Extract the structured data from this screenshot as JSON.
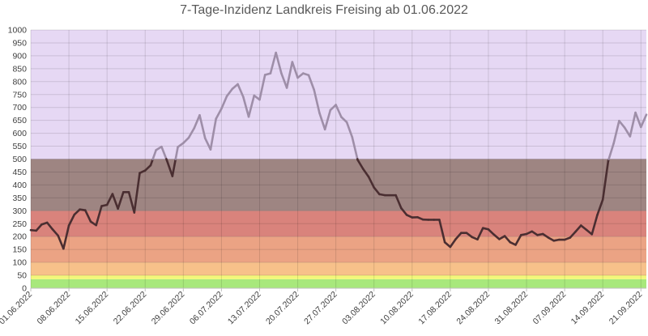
{
  "chart_data": {
    "type": "line",
    "title": "7-Tage-Inzidenz Landkreis Freising ab 01.06.2022",
    "xlabel": "",
    "ylabel": "",
    "ylim": [
      0,
      1000
    ],
    "yticks": [
      0,
      50,
      100,
      150,
      200,
      250,
      300,
      350,
      400,
      450,
      500,
      550,
      600,
      650,
      700,
      750,
      800,
      850,
      900,
      950,
      1000
    ],
    "x_tick_labels": [
      "01.06.2022",
      "08.06.2022",
      "15.06.2022",
      "22.06.2022",
      "29.06.2022",
      "06.07.2022",
      "13.07.2022",
      "20.07.2022",
      "27.07.2022",
      "03.08.2022",
      "10.08.2022",
      "17.08.2022",
      "24.08.2022",
      "31.08.2022",
      "07.09.2022",
      "14.09.2022",
      "21.09.2022"
    ],
    "grid": true,
    "bands": [
      {
        "from": 0,
        "to": 35,
        "color": "#a8e87c"
      },
      {
        "from": 35,
        "to": 50,
        "color": "#f3f77a"
      },
      {
        "from": 50,
        "to": 100,
        "color": "#f7c18a"
      },
      {
        "from": 100,
        "to": 200,
        "color": "#eba384"
      },
      {
        "from": 200,
        "to": 300,
        "color": "#d9837c"
      },
      {
        "from": 300,
        "to": 500,
        "color": "#9e8582"
      },
      {
        "from": 500,
        "to": 1000,
        "color": "#e6d8f4"
      }
    ],
    "series": [
      {
        "values": [
          225,
          223,
          247,
          254,
          228,
          204,
          153,
          243,
          285,
          305,
          302,
          258,
          244,
          318,
          323,
          365,
          308,
          372,
          372,
          293,
          446,
          456,
          476,
          535,
          548,
          494,
          434,
          547,
          562,
          583,
          620,
          670,
          581,
          537,
          656,
          695,
          744,
          772,
          790,
          741,
          664,
          746,
          730,
          826,
          832,
          912,
          832,
          776,
          876,
          815,
          832,
          825,
          768,
          678,
          615,
          690,
          710,
          663,
          643,
          585,
          497,
          462,
          432,
          390,
          364,
          360,
          360,
          360,
          310,
          284,
          274,
          275,
          266,
          265,
          265,
          265,
          178,
          160,
          190,
          214,
          214,
          198,
          189,
          233,
          228,
          208,
          190,
          202,
          178,
          168,
          206,
          210,
          220,
          206,
          210,
          196,
          184,
          188,
          188,
          196,
          219,
          243,
          226,
          209,
          284,
          343,
          493,
          561,
          648,
          622,
          588,
          680,
          624,
          672
        ],
        "colors": {
          "above": "#9e8ea8",
          "below": "#4a2e31",
          "threshold": 500
        }
      }
    ]
  }
}
